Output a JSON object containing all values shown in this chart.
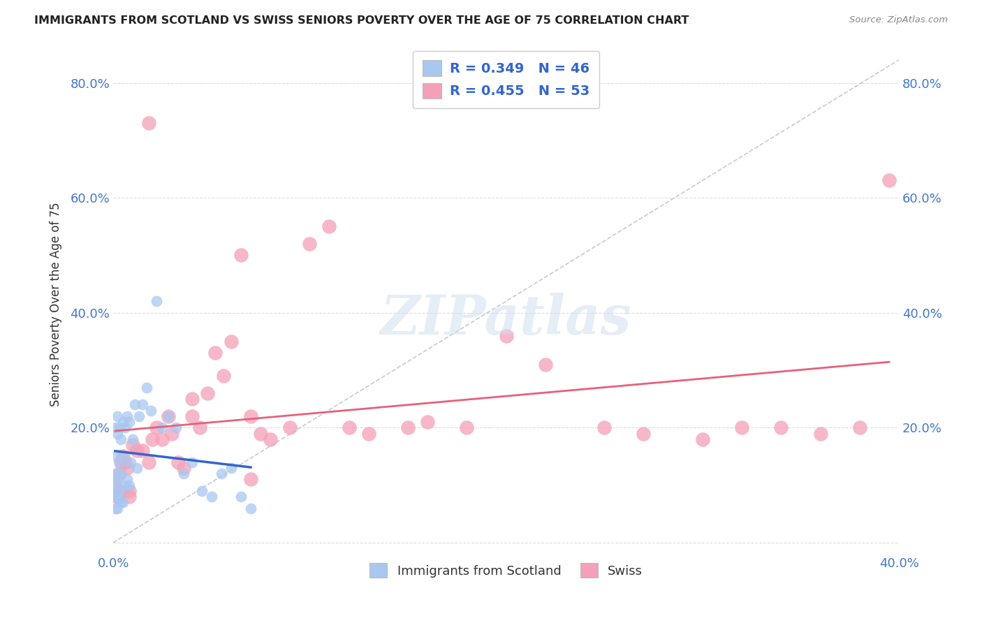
{
  "title": "IMMIGRANTS FROM SCOTLAND VS SWISS SENIORS POVERTY OVER THE AGE OF 75 CORRELATION CHART",
  "source": "Source: ZipAtlas.com",
  "ylabel": "Seniors Poverty Over the Age of 75",
  "xlim": [
    0.0,
    40.0
  ],
  "ylim": [
    -2.0,
    85.0
  ],
  "xtick_positions": [
    0.0,
    5.0,
    10.0,
    15.0,
    20.0,
    25.0,
    30.0,
    35.0,
    40.0
  ],
  "xtick_labels": [
    "0.0%",
    "",
    "",
    "",
    "",
    "",
    "",
    "",
    "40.0%"
  ],
  "ytick_positions": [
    0.0,
    20.0,
    40.0,
    60.0,
    80.0
  ],
  "ytick_labels_left": [
    "",
    "20.0%",
    "40.0%",
    "60.0%",
    "80.0%"
  ],
  "ytick_labels_right": [
    "",
    "20.0%",
    "40.0%",
    "60.0%",
    "80.0%"
  ],
  "scotland_color": "#A8C8F0",
  "swiss_color": "#F4A0B8",
  "scotland_line_color": "#3366CC",
  "swiss_line_color": "#E8607A",
  "diag_line_color": "#BBBBCC",
  "watermark_color": "#D0DFF0",
  "scotland_x": [
    0.1,
    0.1,
    0.1,
    0.1,
    0.1,
    0.1,
    0.2,
    0.2,
    0.2,
    0.2,
    0.2,
    0.3,
    0.3,
    0.3,
    0.4,
    0.4,
    0.4,
    0.5,
    0.5,
    0.5,
    0.6,
    0.6,
    0.7,
    0.7,
    0.8,
    0.8,
    0.9,
    1.0,
    1.1,
    1.2,
    1.3,
    1.5,
    1.7,
    1.9,
    2.2,
    2.5,
    2.8,
    3.2,
    3.6,
    4.0,
    4.5,
    5.0,
    5.5,
    6.0,
    6.5,
    7.0
  ],
  "scotland_y": [
    10.0,
    20.0,
    12.0,
    8.0,
    6.0,
    15.0,
    19.0,
    11.0,
    6.0,
    8.0,
    22.0,
    9.0,
    14.0,
    20.0,
    7.0,
    12.0,
    18.0,
    7.0,
    15.0,
    21.0,
    10.0,
    20.0,
    11.0,
    22.0,
    10.0,
    21.0,
    14.0,
    18.0,
    24.0,
    13.0,
    22.0,
    24.0,
    27.0,
    23.0,
    42.0,
    20.0,
    22.0,
    20.0,
    12.0,
    14.0,
    9.0,
    8.0,
    12.0,
    13.0,
    8.0,
    6.0
  ],
  "swiss_x": [
    0.1,
    0.2,
    0.3,
    0.4,
    0.5,
    0.6,
    0.7,
    0.8,
    1.0,
    1.2,
    1.5,
    1.8,
    2.0,
    2.2,
    2.5,
    2.8,
    3.0,
    3.3,
    3.6,
    4.0,
    4.4,
    4.8,
    5.2,
    5.6,
    6.0,
    6.5,
    7.0,
    7.5,
    8.0,
    9.0,
    10.0,
    11.0,
    12.0,
    13.0,
    15.0,
    16.0,
    18.0,
    20.0,
    22.0,
    25.0,
    27.0,
    30.0,
    32.0,
    34.0,
    36.0,
    38.0,
    39.5,
    0.2,
    0.4,
    0.8,
    1.8,
    4.0,
    7.0
  ],
  "swiss_y": [
    10.0,
    8.0,
    12.0,
    14.0,
    15.0,
    14.0,
    13.0,
    9.0,
    17.0,
    16.0,
    16.0,
    14.0,
    18.0,
    20.0,
    18.0,
    22.0,
    19.0,
    14.0,
    13.0,
    22.0,
    20.0,
    26.0,
    33.0,
    29.0,
    35.0,
    50.0,
    22.0,
    19.0,
    18.0,
    20.0,
    52.0,
    55.0,
    20.0,
    19.0,
    20.0,
    21.0,
    20.0,
    36.0,
    31.0,
    20.0,
    19.0,
    18.0,
    20.0,
    20.0,
    19.0,
    20.0,
    63.0,
    8.0,
    9.0,
    8.0,
    73.0,
    25.0,
    11.0
  ],
  "watermark": "ZIPatlas"
}
